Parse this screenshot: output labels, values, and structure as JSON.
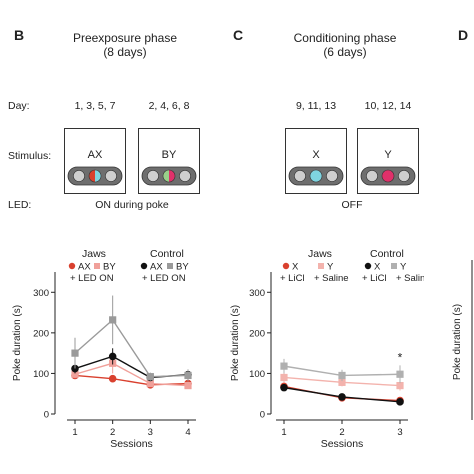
{
  "panels": {
    "B": {
      "letter": "B",
      "title_line1": "Preexposure phase",
      "title_line2": "(8 days)",
      "day_label": "Day:",
      "days_a": "1, 3, 5, 7",
      "days_b": "2, 4, 6, 8",
      "stimulus_label": "Stimulus:",
      "stim_a_name": "AX",
      "stim_b_name": "BY",
      "led_label": "LED:",
      "led_text": "ON during poke"
    },
    "C": {
      "letter": "C",
      "title_line1": "Conditioning phase",
      "title_line2": "(6 days)",
      "days_a": "9, 11, 13",
      "days_b": "10, 12, 14",
      "stim_a_name": "X",
      "stim_b_name": "Y",
      "led_text": "OFF"
    },
    "D": {
      "letter": "D"
    }
  },
  "legend_b": {
    "group1": "Jaws",
    "group2": "Control",
    "s1": "AX",
    "s2": "BY",
    "s3": "AX",
    "s4": "BY",
    "cond1": "+ LED ON",
    "cond2": "+ LED ON"
  },
  "legend_c": {
    "group1": "Jaws",
    "group2": "Control",
    "s1": "X",
    "s2": "Y",
    "s3": "X",
    "s4": "Y",
    "cond1": "+ LiCl",
    "cond2": "+ Saline",
    "cond3": "+ LiCl",
    "cond4": "+ Saline"
  },
  "colors": {
    "red": "#d9402e",
    "pink": "#f0a09a",
    "black": "#111111",
    "gray": "#9a9a9a",
    "light_gray": "#c4c4c4",
    "light_pink": "#f3c0bb",
    "cyan": "#7fd4e0",
    "magenta": "#e0306a",
    "green": "#9ad08a",
    "stim_red": "#d9402e"
  },
  "chart_data": [
    {
      "type": "line",
      "ylabel": "Poke duration (s)",
      "xlabel": "Sessions",
      "x": [
        1,
        2,
        3,
        4
      ],
      "xticks": [
        "1",
        "2",
        "3",
        "4"
      ],
      "ylim": [
        0,
        350
      ],
      "yticks": [
        "0",
        "100",
        "200",
        "300"
      ],
      "series": [
        {
          "name": "Jaws AX + LED ON",
          "color": "#d9402e",
          "marker": "circle",
          "values": [
            95,
            87,
            72,
            75
          ],
          "err": [
            8,
            6,
            5,
            6
          ]
        },
        {
          "name": "Jaws BY + LED ON",
          "color": "#f0a09a",
          "marker": "square",
          "values": [
            98,
            125,
            75,
            70
          ],
          "err": [
            10,
            25,
            8,
            8
          ]
        },
        {
          "name": "Control AX + LED ON",
          "color": "#111111",
          "marker": "circle",
          "values": [
            112,
            142,
            90,
            97
          ],
          "err": [
            12,
            20,
            8,
            10
          ]
        },
        {
          "name": "Control BY + LED ON",
          "color": "#9a9a9a",
          "marker": "square",
          "values": [
            150,
            232,
            92,
            95
          ],
          "err": [
            38,
            60,
            10,
            15
          ]
        }
      ]
    },
    {
      "type": "line",
      "ylabel": "Poke duration (s)",
      "xlabel": "Sessions",
      "x": [
        1,
        2,
        3
      ],
      "xticks": [
        "1",
        "2",
        "3"
      ],
      "ylim": [
        0,
        350
      ],
      "yticks": [
        "0",
        "100",
        "200",
        "300"
      ],
      "annotation": "*",
      "series": [
        {
          "name": "Jaws X + LiCl",
          "color": "#d9402e",
          "marker": "circle",
          "values": [
            68,
            40,
            33
          ],
          "err": [
            6,
            5,
            4
          ]
        },
        {
          "name": "Jaws Y + Saline",
          "color": "#f3b3ad",
          "marker": "square",
          "values": [
            90,
            78,
            70
          ],
          "err": [
            12,
            10,
            12
          ]
        },
        {
          "name": "Control X + LiCl",
          "color": "#111111",
          "marker": "circle",
          "values": [
            65,
            42,
            30
          ],
          "err": [
            6,
            5,
            4
          ]
        },
        {
          "name": "Control Y + Saline",
          "color": "#b0b0b0",
          "marker": "square",
          "values": [
            118,
            95,
            98
          ],
          "err": [
            18,
            14,
            22
          ]
        }
      ]
    },
    {
      "type": "line",
      "ylabel": "Poke duration (s)"
    }
  ]
}
